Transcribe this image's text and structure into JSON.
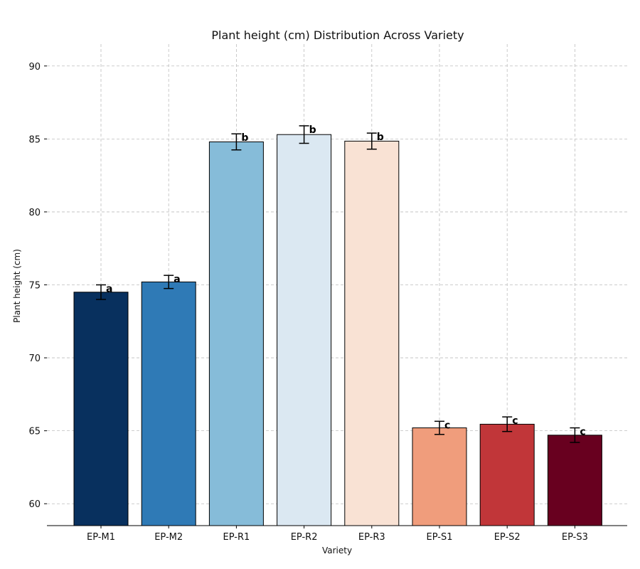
{
  "chart_data": {
    "type": "bar",
    "title": "Plant height (cm) Distribution Across Variety",
    "xlabel": "Variety",
    "ylabel": "Plant height (cm)",
    "ylim": [
      58.5,
      91.5
    ],
    "yticks": [
      60,
      65,
      70,
      75,
      80,
      85,
      90
    ],
    "grid": true,
    "categories": [
      "EP-M1",
      "EP-M2",
      "EP-R1",
      "EP-R2",
      "EP-R3",
      "EP-S1",
      "EP-S2",
      "EP-S3"
    ],
    "values": [
      74.5,
      75.2,
      84.8,
      85.3,
      84.85,
      65.2,
      65.45,
      64.7
    ],
    "errors": [
      0.5,
      0.45,
      0.55,
      0.6,
      0.55,
      0.45,
      0.5,
      0.5
    ],
    "significance": [
      "a",
      "a",
      "b",
      "b",
      "b",
      "c",
      "c",
      "c"
    ],
    "colors": [
      "#08305e",
      "#2f7ab6",
      "#86bcd9",
      "#dbe8f2",
      "#f9e2d4",
      "#f09d7c",
      "#c13639",
      "#68001f"
    ]
  }
}
